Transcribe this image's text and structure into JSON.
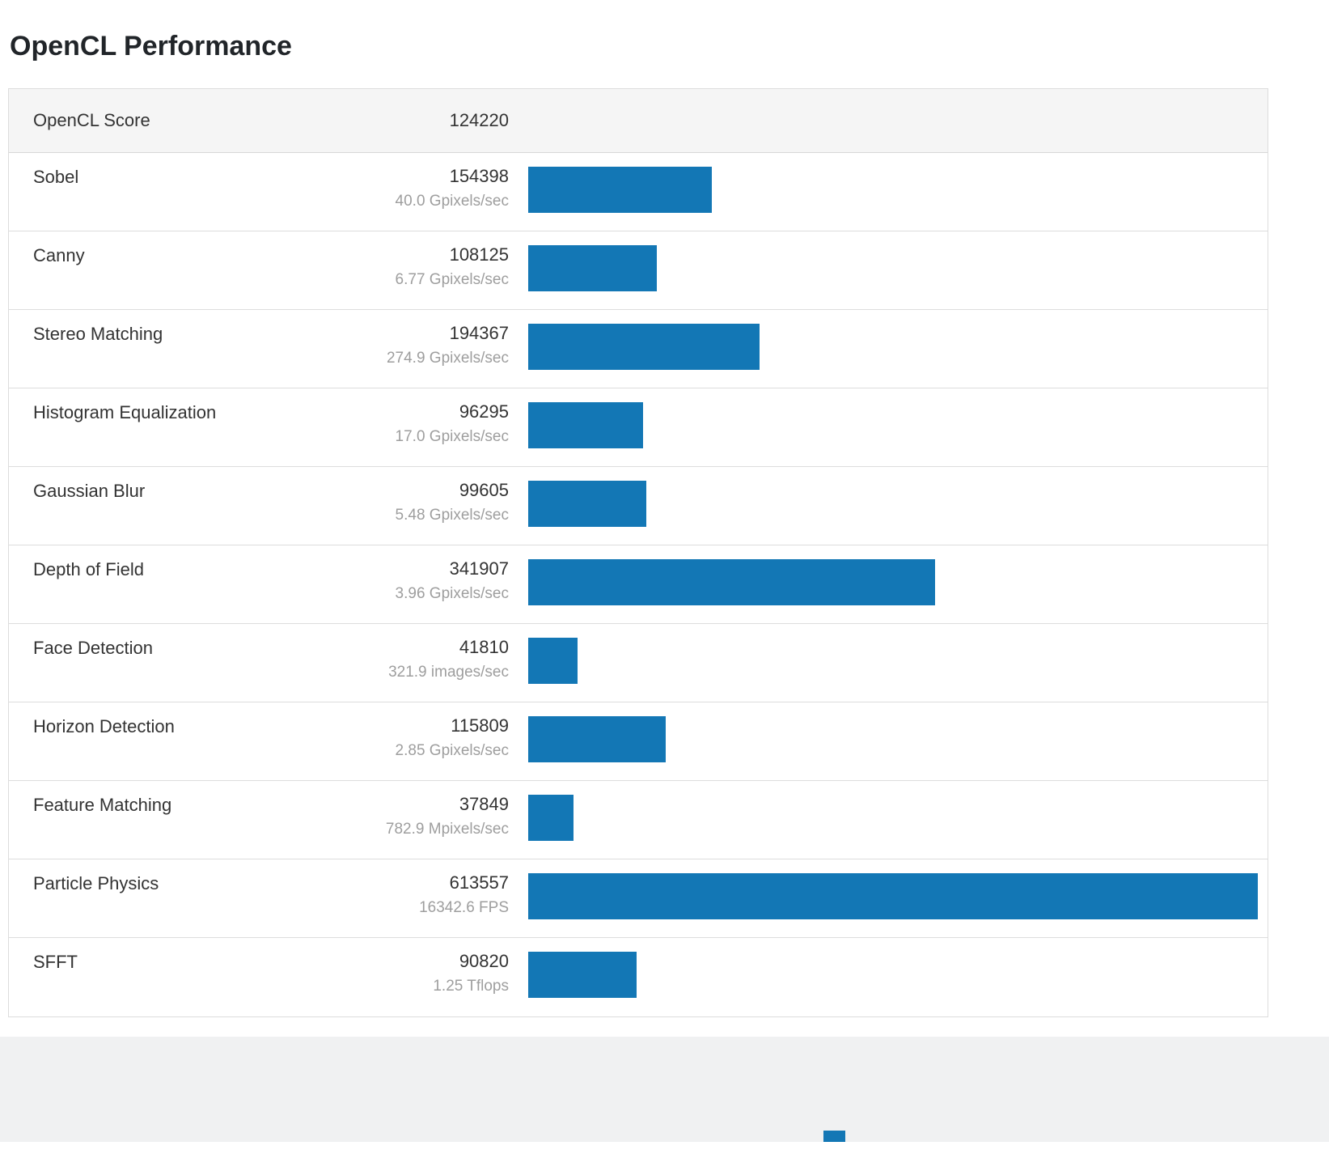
{
  "page": {
    "title": "OpenCL Performance"
  },
  "chart_data": {
    "type": "bar",
    "orientation": "horizontal",
    "title": "OpenCL Performance",
    "score_row": {
      "label": "OpenCL Score",
      "value": "124220"
    },
    "bar_color": "#1377b5",
    "max_value": 613557,
    "xlim": [
      0,
      613557
    ],
    "categories": [
      "Sobel",
      "Canny",
      "Stereo Matching",
      "Histogram Equalization",
      "Gaussian Blur",
      "Depth of Field",
      "Face Detection",
      "Horizon Detection",
      "Feature Matching",
      "Particle Physics",
      "SFFT"
    ],
    "values": [
      154398,
      108125,
      194367,
      96295,
      99605,
      341907,
      41810,
      115809,
      37849,
      613557,
      90820
    ],
    "rows": [
      {
        "name": "Sobel",
        "score": 154398,
        "rate": "40.0 Gpixels/sec"
      },
      {
        "name": "Canny",
        "score": 108125,
        "rate": "6.77 Gpixels/sec"
      },
      {
        "name": "Stereo Matching",
        "score": 194367,
        "rate": "274.9 Gpixels/sec"
      },
      {
        "name": "Histogram Equalization",
        "score": 96295,
        "rate": "17.0 Gpixels/sec"
      },
      {
        "name": "Gaussian Blur",
        "score": 99605,
        "rate": "5.48 Gpixels/sec"
      },
      {
        "name": "Depth of Field",
        "score": 341907,
        "rate": "3.96 Gpixels/sec"
      },
      {
        "name": "Face Detection",
        "score": 41810,
        "rate": "321.9 images/sec"
      },
      {
        "name": "Horizon Detection",
        "score": 115809,
        "rate": "2.85 Gpixels/sec"
      },
      {
        "name": "Feature Matching",
        "score": 37849,
        "rate": "782.9 Mpixels/sec"
      },
      {
        "name": "Particle Physics",
        "score": 613557,
        "rate": "16342.6 FPS"
      },
      {
        "name": "SFFT",
        "score": 90820,
        "rate": "1.25 Tflops"
      }
    ]
  }
}
